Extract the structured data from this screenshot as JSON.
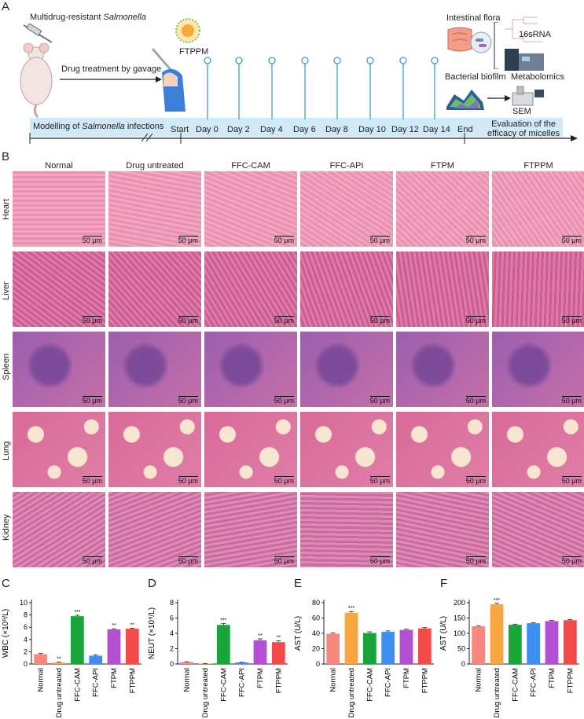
{
  "panels": {
    "a": "A",
    "b": "B",
    "c": "C",
    "d": "D",
    "e": "E",
    "f": "F"
  },
  "schematic": {
    "mdr_prefix": "Multidrug-resistant ",
    "mdr_italic": "Salmonella",
    "gavage": "Drug treatment by gavage",
    "ftppm": "FTPPM",
    "intestinal": "Intestinal flora",
    "rna": "16sRNA",
    "biofilm": "Bacterial biofilm",
    "metabolomics": "Metabolomics",
    "sem": "SEM",
    "modelling_prefix": "Modelling of ",
    "modelling_italic": "Salmonella",
    "modelling_suffix": " infections",
    "start": "Start",
    "days": [
      "Day 0",
      "Day 2",
      "Day 4",
      "Day 6",
      "Day 8",
      "Day 10",
      "Day 12",
      "Day 14"
    ],
    "end": "End",
    "evaluation_1": "Evaluation of the",
    "evaluation_2": "efficacy of micelles"
  },
  "histology": {
    "columns": [
      "Normal",
      "Drug untreated",
      "FFC-CAM",
      "FFC-API",
      "FTPM",
      "FTPPM"
    ],
    "rows": [
      "Heart",
      "Liver",
      "Spleen",
      "Lung",
      "Kidney"
    ],
    "scale_bar": "50 μm"
  },
  "colors": {
    "normal": "#f8877d",
    "untreated": "#f8a640",
    "cam": "#18a63a",
    "api": "#3f8ef2",
    "ftpm": "#b44fd3",
    "ftppm": "#f44a4a",
    "timeline": "#cfe9f7",
    "stem": "#3aa0c8"
  },
  "chart_data": [
    {
      "type": "bar",
      "panel": "C",
      "categories": [
        "Normal",
        "Drug untreated",
        "FFC-CAM",
        "FFC-API",
        "FTPM",
        "FTPPM"
      ],
      "values": [
        1.6,
        0.25,
        7.8,
        1.35,
        5.65,
        5.75
      ],
      "errors": [
        0.15,
        0.05,
        0.15,
        0.15,
        0.1,
        0.1
      ],
      "sig": [
        "",
        "**",
        "***",
        "",
        "**",
        "**"
      ],
      "ylabel": "WBC (×10⁹/L)",
      "ylim": [
        0,
        10
      ],
      "yticks": [
        "0",
        "2",
        "4",
        "6",
        "8",
        "10"
      ]
    },
    {
      "type": "bar",
      "panel": "D",
      "categories": [
        "Normal",
        "Drug untreated",
        "FFC-CAM",
        "FFC-API",
        "FTPM",
        "FTPPM"
      ],
      "values": [
        0.25,
        0.05,
        5.1,
        0.2,
        3.1,
        2.85
      ],
      "errors": [
        0.05,
        0.02,
        0.2,
        0.03,
        0.18,
        0.18
      ],
      "sig": [
        "",
        "",
        "***",
        "",
        "**",
        "**"
      ],
      "ylabel": "NEUT (×10⁹/L)",
      "ylim": [
        0,
        8
      ],
      "yticks": [
        "0",
        "2",
        "4",
        "6",
        "8"
      ]
    },
    {
      "type": "bar",
      "panel": "E",
      "categories": [
        "Normal",
        "Drug untreated",
        "FFC-CAM",
        "FFC-API",
        "FTPM",
        "FTPPM"
      ],
      "values": [
        39.5,
        67,
        40.5,
        42,
        44.5,
        46.5
      ],
      "errors": [
        1.2,
        1.5,
        1.5,
        1.2,
        1,
        1
      ],
      "sig": [
        "",
        "***",
        "",
        "",
        "",
        ""
      ],
      "ylabel": "AST (U/L)",
      "ylim": [
        0,
        80
      ],
      "yticks": [
        "0",
        "20",
        "40",
        "60",
        "80"
      ]
    },
    {
      "type": "bar",
      "panel": "F",
      "categories": [
        "Normal",
        "Drug untreated",
        "FFC-CAM",
        "FFC-API",
        "FTPM",
        "FTPPM"
      ],
      "values": [
        123,
        195,
        128,
        133,
        140,
        143
      ],
      "errors": [
        2,
        3,
        2,
        2,
        2,
        2
      ],
      "sig": [
        "",
        "***",
        "",
        "",
        "",
        ""
      ],
      "ylabel": "AST (U/L)",
      "ylim": [
        0,
        200
      ],
      "yticks": [
        "0",
        "50",
        "100",
        "150",
        "200"
      ]
    }
  ]
}
